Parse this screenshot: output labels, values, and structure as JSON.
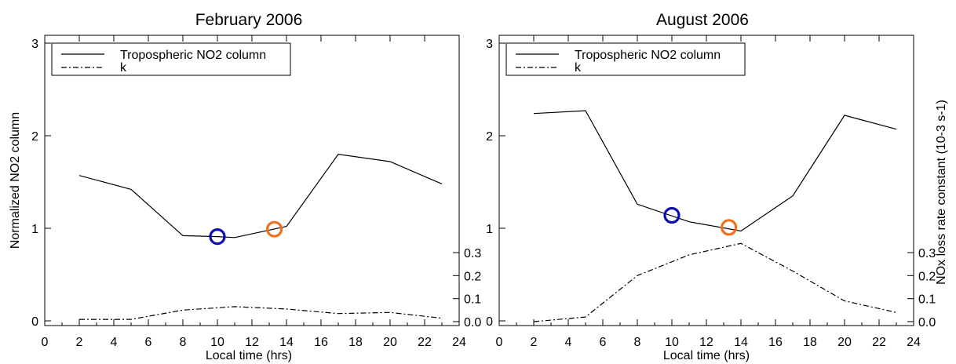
{
  "chart_data": [
    {
      "type": "line",
      "title": "February 2006",
      "xlabel": "Local time (hrs)",
      "ylabel": "Normalized NO2 column",
      "xlim": [
        0,
        24
      ],
      "ylim": [
        0,
        3
      ],
      "xticks": [
        "0",
        "2",
        "4",
        "6",
        "8",
        "10",
        "12",
        "14",
        "16",
        "18",
        "20",
        "22",
        "24"
      ],
      "yticks": [
        "0",
        "1",
        "2",
        "3"
      ],
      "y2ticks": [
        "0.0",
        "0.1",
        "0.2",
        "0.3"
      ],
      "y2lim": [
        0,
        0.3
      ],
      "legend": [
        "Tropospheric NO2 column",
        "k"
      ],
      "legend_position": "top-left",
      "series": [
        {
          "name": "Tropospheric NO2 column",
          "axis": "left",
          "style": "solid",
          "x": [
            2,
            5,
            8,
            10,
            11,
            14,
            17,
            20,
            23
          ],
          "y": [
            1.57,
            1.42,
            0.92,
            0.91,
            0.9,
            1.02,
            1.8,
            1.72,
            1.48
          ]
        },
        {
          "name": "k",
          "axis": "right",
          "style": "dash-dot",
          "x": [
            2,
            5,
            8,
            11,
            14,
            17,
            20,
            23
          ],
          "y": [
            0.01,
            0.01,
            0.05,
            0.065,
            0.055,
            0.035,
            0.04,
            0.015
          ]
        }
      ],
      "markers": [
        {
          "x": 10,
          "y": 0.91,
          "color": "#0b0bb0"
        },
        {
          "x": 13.3,
          "y": 0.99,
          "color": "#f07020"
        }
      ]
    },
    {
      "type": "line",
      "title": "August 2006",
      "xlabel": "Local time (hrs)",
      "ylabel": "NOx loss rate constant (10-3 s-1)",
      "xlim": [
        0,
        24
      ],
      "ylim": [
        0,
        3
      ],
      "xticks": [
        "0",
        "2",
        "4",
        "6",
        "8",
        "10",
        "12",
        "14",
        "16",
        "18",
        "20",
        "22",
        "24"
      ],
      "yticks": [
        "0",
        "1",
        "2",
        "3"
      ],
      "y2ticks": [
        "0.0",
        "0.1",
        "0.2",
        "0.3"
      ],
      "y2lim": [
        0,
        0.3
      ],
      "legend": [
        "Tropospheric NO2 column",
        "k"
      ],
      "legend_position": "top-left",
      "series": [
        {
          "name": "Tropospheric NO2 column",
          "axis": "left",
          "style": "solid",
          "x": [
            2,
            5,
            8,
            11,
            14,
            17,
            20,
            23
          ],
          "y": [
            2.24,
            2.27,
            1.26,
            1.07,
            0.97,
            1.35,
            2.22,
            2.07
          ]
        },
        {
          "name": "k",
          "axis": "right",
          "style": "dash-dot",
          "x": [
            2,
            5,
            8,
            11,
            14,
            17,
            20,
            23
          ],
          "y": [
            0.0,
            0.02,
            0.2,
            0.29,
            0.34,
            0.22,
            0.09,
            0.04
          ]
        }
      ],
      "markers": [
        {
          "x": 10,
          "y": 1.14,
          "color": "#0b0bb0"
        },
        {
          "x": 13.3,
          "y": 1.01,
          "color": "#f07020"
        }
      ]
    }
  ]
}
